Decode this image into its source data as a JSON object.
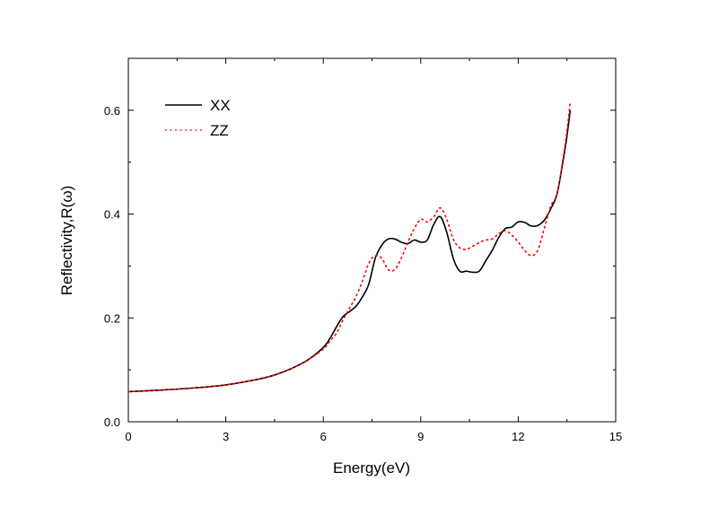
{
  "chart_data": {
    "type": "line",
    "xlabel": "Energy(eV)",
    "ylabel": "Reflectivity,R(ω)",
    "xlim": [
      0,
      15
    ],
    "ylim": [
      0,
      0.7
    ],
    "xticks": [
      0,
      3,
      6,
      9,
      12,
      15
    ],
    "xtick_labels": [
      "0",
      "3",
      "6",
      "9",
      "12",
      "15"
    ],
    "yticks": [
      0.0,
      0.2,
      0.4,
      0.6
    ],
    "ytick_labels": [
      "0.0",
      "0.2",
      "0.4",
      "0.6"
    ],
    "grid": false,
    "legend_position": "top-left",
    "series": [
      {
        "name": "XX",
        "color": "#000000",
        "style": "solid",
        "x": [
          0,
          1,
          2,
          3,
          4,
          4.5,
          5,
          5.5,
          6,
          6.2,
          6.4,
          6.6,
          6.8,
          7.0,
          7.2,
          7.4,
          7.6,
          7.8,
          8.0,
          8.2,
          8.4,
          8.6,
          8.8,
          9.0,
          9.2,
          9.4,
          9.6,
          9.8,
          10.0,
          10.2,
          10.4,
          10.6,
          10.8,
          11.0,
          11.2,
          11.4,
          11.6,
          11.8,
          12.0,
          12.2,
          12.4,
          12.6,
          12.8,
          13.0,
          13.2,
          13.4,
          13.5,
          13.6
        ],
        "y": [
          0.058,
          0.061,
          0.065,
          0.071,
          0.082,
          0.09,
          0.102,
          0.118,
          0.143,
          0.16,
          0.182,
          0.202,
          0.212,
          0.222,
          0.24,
          0.265,
          0.315,
          0.34,
          0.352,
          0.352,
          0.346,
          0.343,
          0.35,
          0.346,
          0.35,
          0.38,
          0.395,
          0.365,
          0.315,
          0.29,
          0.29,
          0.288,
          0.29,
          0.31,
          0.33,
          0.355,
          0.372,
          0.375,
          0.385,
          0.384,
          0.377,
          0.378,
          0.388,
          0.41,
          0.44,
          0.51,
          0.55,
          0.6
        ]
      },
      {
        "name": "ZZ",
        "color": "#ff0000",
        "style": "dotted",
        "x": [
          0,
          1,
          2,
          3,
          4,
          4.5,
          5,
          5.5,
          6,
          6.2,
          6.4,
          6.6,
          6.8,
          7.0,
          7.2,
          7.4,
          7.6,
          7.8,
          8.0,
          8.2,
          8.4,
          8.6,
          8.8,
          9.0,
          9.2,
          9.4,
          9.6,
          9.8,
          10.0,
          10.2,
          10.4,
          10.6,
          10.8,
          11.0,
          11.2,
          11.4,
          11.6,
          11.8,
          12.0,
          12.2,
          12.4,
          12.6,
          12.8,
          13.0,
          13.2,
          13.4,
          13.5,
          13.6
        ],
        "y": [
          0.058,
          0.061,
          0.065,
          0.071,
          0.082,
          0.09,
          0.102,
          0.118,
          0.14,
          0.155,
          0.17,
          0.195,
          0.218,
          0.24,
          0.27,
          0.305,
          0.32,
          0.315,
          0.293,
          0.293,
          0.315,
          0.345,
          0.372,
          0.39,
          0.385,
          0.395,
          0.412,
          0.39,
          0.352,
          0.335,
          0.332,
          0.338,
          0.345,
          0.35,
          0.352,
          0.362,
          0.368,
          0.36,
          0.346,
          0.33,
          0.32,
          0.33,
          0.372,
          0.415,
          0.44,
          0.515,
          0.56,
          0.615
        ]
      }
    ]
  }
}
